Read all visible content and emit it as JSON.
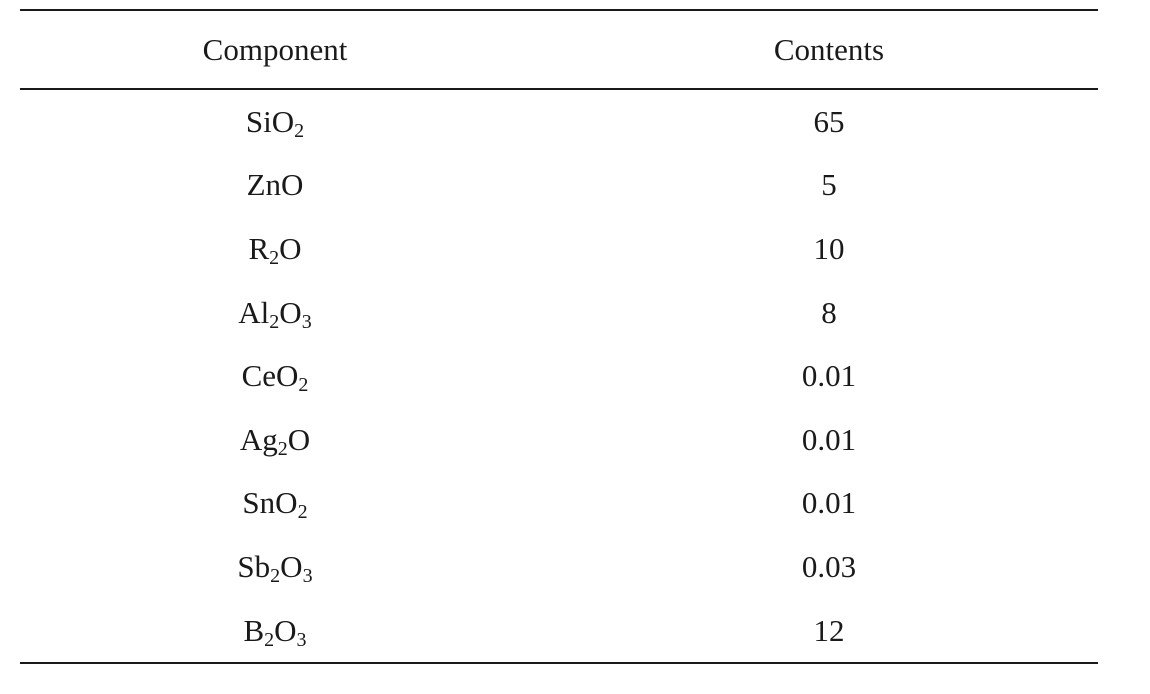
{
  "table": {
    "headers": {
      "component": "Component",
      "contents": "Contents"
    },
    "rows": [
      {
        "component": [
          {
            "t": "Si"
          },
          {
            "t": "O"
          },
          {
            "s": "2"
          }
        ],
        "contents": "65"
      },
      {
        "component": [
          {
            "t": "ZnO"
          }
        ],
        "contents": "5"
      },
      {
        "component": [
          {
            "t": "R"
          },
          {
            "s": "2"
          },
          {
            "t": "O"
          }
        ],
        "contents": "10"
      },
      {
        "component": [
          {
            "t": "Al"
          },
          {
            "s": "2"
          },
          {
            "t": "O"
          },
          {
            "s": "3"
          }
        ],
        "contents": "8"
      },
      {
        "component": [
          {
            "t": "CeO"
          },
          {
            "s": "2"
          }
        ],
        "contents": "0.01"
      },
      {
        "component": [
          {
            "t": "Ag"
          },
          {
            "s": "2"
          },
          {
            "t": "O"
          }
        ],
        "contents": "0.01"
      },
      {
        "component": [
          {
            "t": "SnO"
          },
          {
            "s": "2"
          }
        ],
        "contents": "0.01"
      },
      {
        "component": [
          {
            "t": "Sb"
          },
          {
            "s": "2"
          },
          {
            "t": "O"
          },
          {
            "s": "3"
          }
        ],
        "contents": "0.03"
      },
      {
        "component": [
          {
            "t": "B"
          },
          {
            "s": "2"
          },
          {
            "t": "O"
          },
          {
            "s": "3"
          }
        ],
        "contents": "12"
      }
    ]
  }
}
